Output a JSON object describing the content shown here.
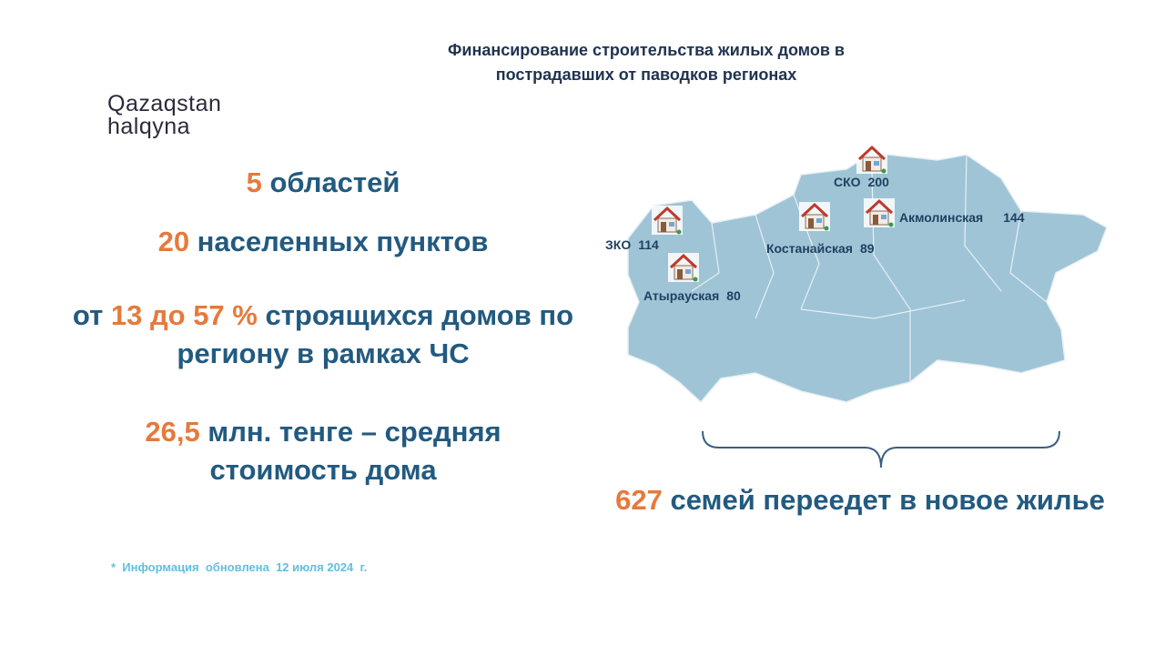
{
  "logo": {
    "line1": "Qazaqstan",
    "line2": "halqyna"
  },
  "title": [
    "Финансирование строительства  жилых домов в",
    "пострадавших  от паводков регионах"
  ],
  "facts": [
    [
      [
        {
          "text": "5",
          "accent": true
        },
        {
          "text": " областей"
        }
      ]
    ],
    [
      [
        {
          "text": "20",
          "accent": true
        },
        {
          "text": " населенных пунктов"
        }
      ]
    ],
    [
      [
        {
          "text": "от "
        },
        {
          "text": "13 до 57 %",
          "accent": true
        },
        {
          "text": " строящихся домов по"
        }
      ],
      [
        {
          "text": "региону в рамках ЧС"
        }
      ]
    ],
    [
      [
        {
          "text": "26,5",
          "accent": true
        },
        {
          "text": " млн. тенге – средняя"
        }
      ],
      [
        {
          "text": "стоимость дома"
        }
      ]
    ]
  ],
  "regions": [
    {
      "name": "ЗКО",
      "value": "114"
    },
    {
      "name": "Атырауская",
      "value": "80"
    },
    {
      "name": "Костанайская",
      "value": "89"
    },
    {
      "name": "СКО",
      "value": "200"
    },
    {
      "name": "Акмолинская",
      "value": "144"
    }
  ],
  "total": [
    {
      "text": "627",
      "accent": true
    },
    {
      "text": " семей переедет в новое жилье"
    }
  ],
  "footnote": "*  Информация  обновлена  12 июля 2024  г."
}
